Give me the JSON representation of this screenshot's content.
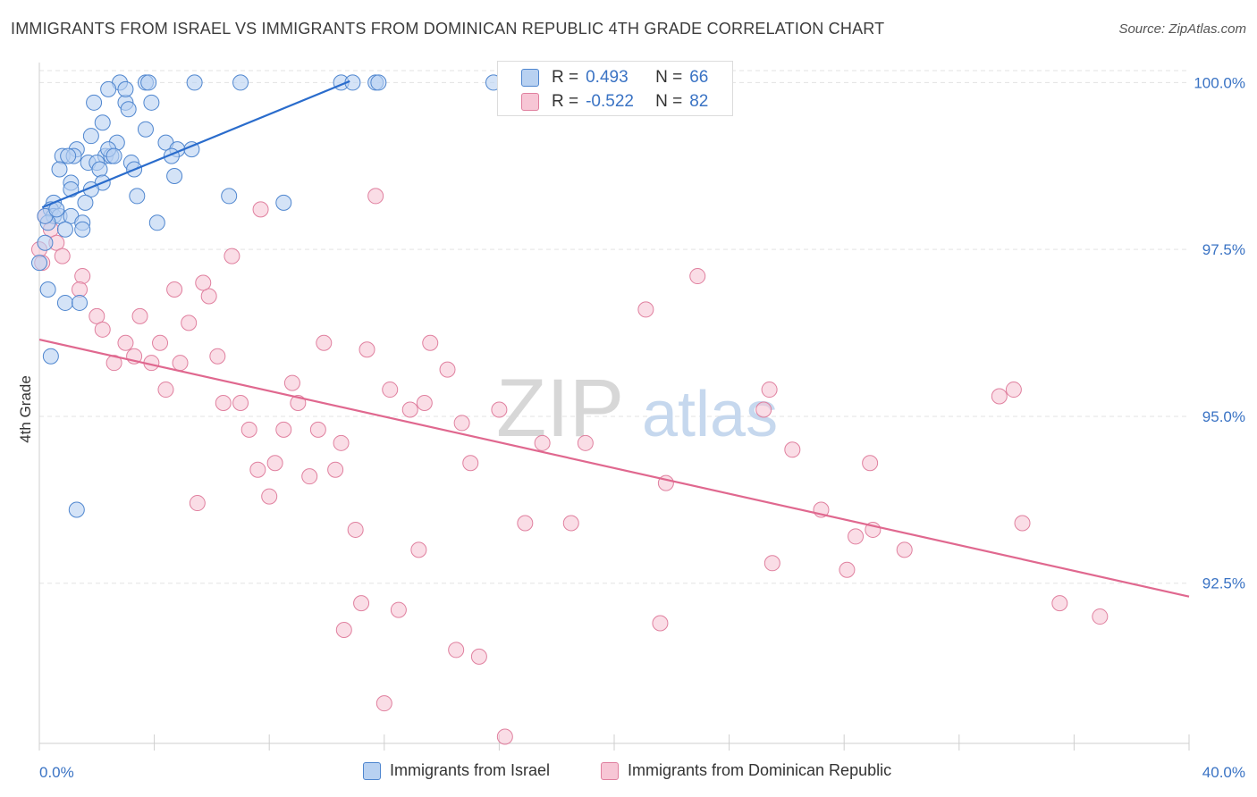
{
  "title": "IMMIGRANTS FROM ISRAEL VS IMMIGRANTS FROM DOMINICAN REPUBLIC 4TH GRADE CORRELATION CHART",
  "source": "Source: ZipAtlas.com",
  "watermark": {
    "zip": "ZIP",
    "atlas": "atlas"
  },
  "colors": {
    "blue_fill": "#b8d1f1",
    "blue_stroke": "#4f86cf",
    "blue_line": "#2a6ccc",
    "pink_fill": "#f7c6d5",
    "pink_stroke": "#e0809f",
    "pink_line": "#e0688f",
    "axis_label": "#3a73c4",
    "grid": "#e3e3e3"
  },
  "stats": {
    "r_label": "R =",
    "n_label": "N =",
    "rows": [
      {
        "r": "0.493",
        "n": "66",
        "color": "blue"
      },
      {
        "r": "-0.522",
        "n": "82",
        "color": "pink"
      }
    ]
  },
  "legend": [
    {
      "label": "Immigrants from Israel",
      "color": "blue"
    },
    {
      "label": "Immigrants from Dominican Republic",
      "color": "pink"
    }
  ],
  "chart_data": {
    "type": "scatter",
    "title": "IMMIGRANTS FROM ISRAEL VS IMMIGRANTS FROM DOMINICAN REPUBLIC 4TH GRADE CORRELATION CHART",
    "xlabel": "",
    "ylabel": "4th Grade",
    "xlim": [
      0,
      40
    ],
    "ylim": [
      90.1,
      100.3
    ],
    "x_tick_labels": [
      "0.0%",
      "40.0%"
    ],
    "y_ticks": [
      92.5,
      95.0,
      97.5,
      100.0
    ],
    "y_tick_labels": [
      "92.5%",
      "95.0%",
      "97.5%",
      "100.0%"
    ],
    "grid": true,
    "legend_position": "bottom",
    "series": [
      {
        "name": "Immigrants from Israel",
        "color": "blue",
        "r": 0.493,
        "n": 66,
        "trend": {
          "x": [
            0.1,
            10.8
          ],
          "y": [
            98.13,
            100.02
          ]
        },
        "points": [
          [
            2.8,
            100.0
          ],
          [
            3.7,
            100.0
          ],
          [
            3.8,
            100.0
          ],
          [
            5.4,
            100.0
          ],
          [
            7.0,
            100.0
          ],
          [
            10.5,
            100.0
          ],
          [
            10.9,
            100.0
          ],
          [
            11.7,
            100.0
          ],
          [
            11.8,
            100.0
          ],
          [
            15.8,
            100.0
          ],
          [
            2.4,
            99.9
          ],
          [
            1.9,
            99.7
          ],
          [
            3.0,
            99.7
          ],
          [
            3.9,
            99.7
          ],
          [
            3.1,
            99.6
          ],
          [
            2.2,
            99.4
          ],
          [
            3.7,
            99.3
          ],
          [
            1.8,
            99.2
          ],
          [
            2.7,
            99.1
          ],
          [
            4.4,
            99.1
          ],
          [
            1.3,
            99.0
          ],
          [
            0.8,
            98.9
          ],
          [
            1.2,
            98.9
          ],
          [
            2.3,
            98.9
          ],
          [
            2.5,
            98.9
          ],
          [
            2.4,
            99.0
          ],
          [
            4.8,
            99.0
          ],
          [
            5.3,
            99.0
          ],
          [
            1.7,
            98.8
          ],
          [
            2.0,
            98.8
          ],
          [
            3.2,
            98.8
          ],
          [
            0.7,
            98.7
          ],
          [
            2.1,
            98.7
          ],
          [
            3.3,
            98.7
          ],
          [
            4.7,
            98.6
          ],
          [
            1.1,
            98.5
          ],
          [
            2.2,
            98.5
          ],
          [
            1.1,
            98.4
          ],
          [
            1.8,
            98.4
          ],
          [
            6.6,
            98.3
          ],
          [
            3.4,
            98.3
          ],
          [
            1.6,
            98.2
          ],
          [
            0.5,
            98.2
          ],
          [
            8.5,
            98.2
          ],
          [
            0.4,
            98.1
          ],
          [
            0.5,
            98.0
          ],
          [
            0.7,
            98.0
          ],
          [
            1.1,
            98.0
          ],
          [
            0.3,
            97.9
          ],
          [
            1.5,
            97.9
          ],
          [
            4.1,
            97.9
          ],
          [
            0.9,
            97.8
          ],
          [
            1.5,
            97.8
          ],
          [
            0.2,
            97.6
          ],
          [
            0.0,
            97.3
          ],
          [
            0.3,
            96.9
          ],
          [
            0.9,
            96.7
          ],
          [
            1.4,
            96.7
          ],
          [
            0.4,
            95.9
          ],
          [
            1.3,
            93.6
          ],
          [
            0.2,
            98.0
          ],
          [
            0.6,
            98.1
          ],
          [
            2.6,
            98.9
          ],
          [
            1.0,
            98.9
          ],
          [
            3.0,
            99.9
          ],
          [
            4.6,
            98.9
          ]
        ]
      },
      {
        "name": "Immigrants from Dominican Republic",
        "color": "pink",
        "r": -0.522,
        "n": 82,
        "trend": {
          "x": [
            0.0,
            40.0
          ],
          "y": [
            96.15,
            92.3
          ]
        },
        "points": [
          [
            0.2,
            98.0
          ],
          [
            0.4,
            97.8
          ],
          [
            0.6,
            97.6
          ],
          [
            0.8,
            97.4
          ],
          [
            1.5,
            97.1
          ],
          [
            1.4,
            96.9
          ],
          [
            2.0,
            96.5
          ],
          [
            2.2,
            96.3
          ],
          [
            2.6,
            95.8
          ],
          [
            3.0,
            96.1
          ],
          [
            3.5,
            96.5
          ],
          [
            3.3,
            95.9
          ],
          [
            3.9,
            95.8
          ],
          [
            4.2,
            96.1
          ],
          [
            4.4,
            95.4
          ],
          [
            4.7,
            96.9
          ],
          [
            4.9,
            95.8
          ],
          [
            5.2,
            96.4
          ],
          [
            5.5,
            93.7
          ],
          [
            5.9,
            96.8
          ],
          [
            5.7,
            97.0
          ],
          [
            6.2,
            95.9
          ],
          [
            6.4,
            95.2
          ],
          [
            6.7,
            97.4
          ],
          [
            7.0,
            95.2
          ],
          [
            7.3,
            94.8
          ],
          [
            7.6,
            94.2
          ],
          [
            7.7,
            98.1
          ],
          [
            8.0,
            93.8
          ],
          [
            8.2,
            94.3
          ],
          [
            8.5,
            94.8
          ],
          [
            8.8,
            95.5
          ],
          [
            9.0,
            95.2
          ],
          [
            9.4,
            94.1
          ],
          [
            9.7,
            94.8
          ],
          [
            9.9,
            96.1
          ],
          [
            10.3,
            94.2
          ],
          [
            10.5,
            94.6
          ],
          [
            10.6,
            91.8
          ],
          [
            11.0,
            93.3
          ],
          [
            11.2,
            92.2
          ],
          [
            11.4,
            96.0
          ],
          [
            11.7,
            98.3
          ],
          [
            12.0,
            90.7
          ],
          [
            12.2,
            95.4
          ],
          [
            12.5,
            92.1
          ],
          [
            12.9,
            95.1
          ],
          [
            13.2,
            93.0
          ],
          [
            13.4,
            95.2
          ],
          [
            13.6,
            96.1
          ],
          [
            14.2,
            95.7
          ],
          [
            14.5,
            91.5
          ],
          [
            14.7,
            94.9
          ],
          [
            15.0,
            94.3
          ],
          [
            15.3,
            91.4
          ],
          [
            16.0,
            95.1
          ],
          [
            16.2,
            90.2
          ],
          [
            16.9,
            93.4
          ],
          [
            17.5,
            94.6
          ],
          [
            18.5,
            93.4
          ],
          [
            19.0,
            94.6
          ],
          [
            21.1,
            96.6
          ],
          [
            21.6,
            91.9
          ],
          [
            21.8,
            94.0
          ],
          [
            22.9,
            97.1
          ],
          [
            25.2,
            95.1
          ],
          [
            25.4,
            95.4
          ],
          [
            25.5,
            92.8
          ],
          [
            26.2,
            94.5
          ],
          [
            27.2,
            93.6
          ],
          [
            28.1,
            92.7
          ],
          [
            28.4,
            93.2
          ],
          [
            28.9,
            94.3
          ],
          [
            29.0,
            93.3
          ],
          [
            30.1,
            93.0
          ],
          [
            33.4,
            95.3
          ],
          [
            33.9,
            95.4
          ],
          [
            34.2,
            93.4
          ],
          [
            35.5,
            92.2
          ],
          [
            36.9,
            92.0
          ],
          [
            0.1,
            97.3
          ],
          [
            0.0,
            97.5
          ]
        ]
      }
    ]
  }
}
